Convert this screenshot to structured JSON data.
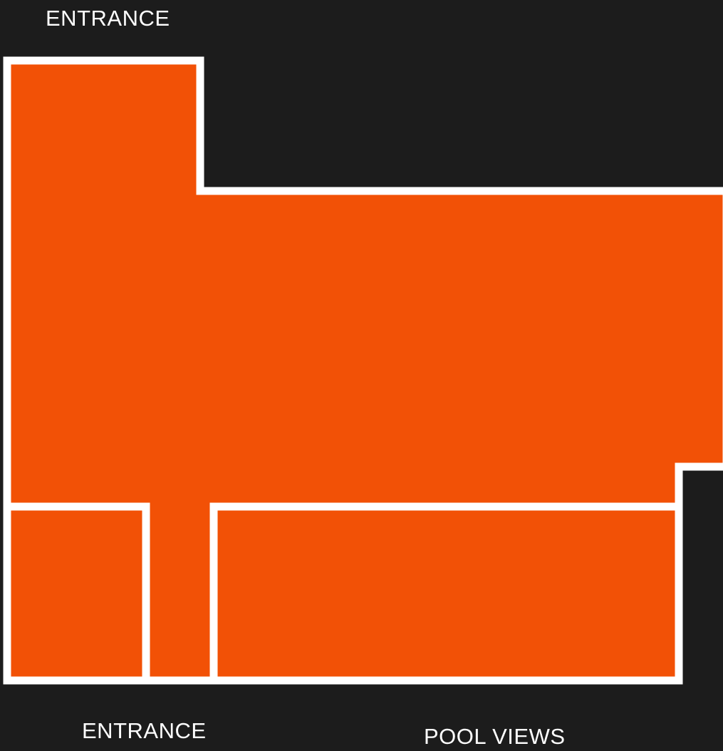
{
  "labels": {
    "entrance_top": "ENTRANCE",
    "entrance_bottom": "ENTRANCE",
    "pool_views": "POOL VIEWS"
  },
  "colors": {
    "background": "#1c1c1c",
    "room_fill": "#f25106",
    "wall": "#ffffff",
    "text": "#ffffff"
  }
}
